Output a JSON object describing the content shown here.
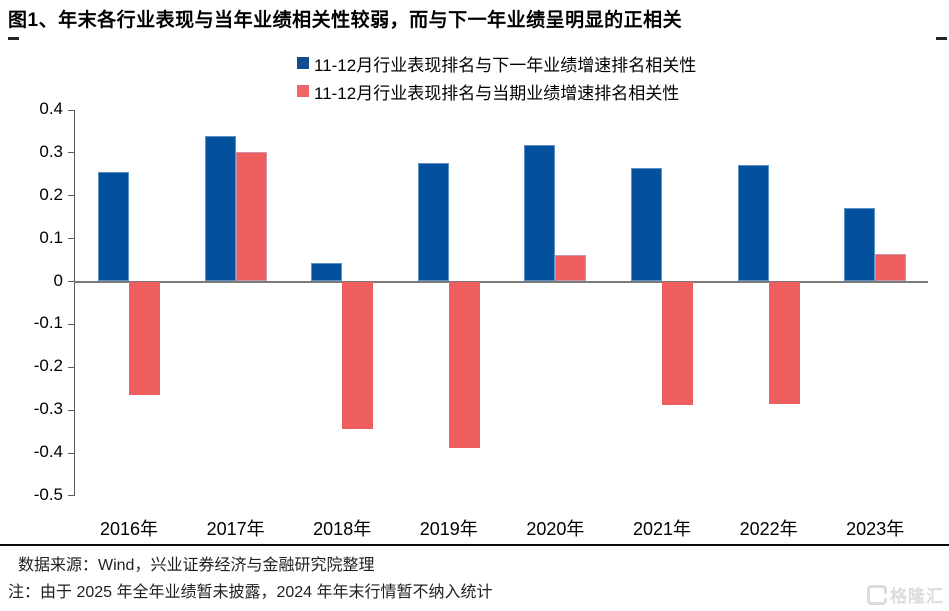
{
  "title": "图1、年末各行业表现与当年业绩相关性较弱，而与下一年业绩呈明显的正相关",
  "legend": {
    "items": [
      {
        "label": "11-12月行业表现排名与下一年业绩增速排名相关性",
        "color": "#114c8f"
      },
      {
        "label": "11-12月行业表现排名与当期业绩增速排名相关性",
        "color": "#f06565"
      }
    ]
  },
  "chart_data": {
    "type": "bar",
    "title": "年末各行业表现与当年业绩相关性",
    "categories": [
      "2016年",
      "2017年",
      "2018年",
      "2019年",
      "2020年",
      "2021年",
      "2022年",
      "2023年"
    ],
    "series": [
      {
        "name": "11-12月行业表现排名与下一年业绩增速排名相关性",
        "color": "#03509c",
        "values": [
          0.255,
          0.34,
          0.044,
          0.277,
          0.318,
          0.265,
          0.272,
          0.172
        ]
      },
      {
        "name": "11-12月行业表现排名与当期业绩增速排名相关性",
        "color": "#ef5e5f",
        "values": [
          -0.265,
          0.303,
          -0.343,
          -0.388,
          0.061,
          -0.287,
          -0.285,
          0.065
        ]
      }
    ],
    "xlabel": "",
    "ylabel": "",
    "ylim": [
      -0.5,
      0.4
    ],
    "ytick_labels": [
      "0.4",
      "0.3",
      "0.2",
      "0.1",
      "0",
      "-0.1",
      "-0.2",
      "-0.3",
      "-0.4",
      "-0.5"
    ],
    "grid": false,
    "legend_position": "top"
  },
  "footer": {
    "source_line": "数据来源：Wind，兴业证券经济与金融研究院整理",
    "note_line": "注：由于 2025 年全年业绩暂未披露，2024 年年末行情暂不纳入统计"
  },
  "watermark": {
    "text": "格隆汇"
  }
}
